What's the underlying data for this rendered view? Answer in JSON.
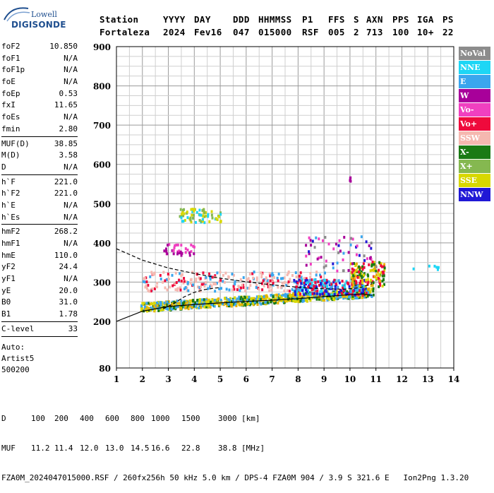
{
  "logo": {
    "line1": "Lowell",
    "line2": "DIGISONDE"
  },
  "header": {
    "row1": [
      "Station",
      "YYYY",
      "DAY",
      "DDD",
      "HHMMSS",
      "P1",
      "FFS",
      "S",
      "AXN",
      "PPS",
      "IGA",
      "PS"
    ],
    "row2": [
      "Fortaleza",
      "2024",
      "Fev16",
      "047",
      "015000",
      "RSF",
      "005",
      "2",
      "713",
      "100",
      "10+",
      "22"
    ]
  },
  "params": [
    {
      "k": "foF2",
      "v": "10.850"
    },
    {
      "k": "foF1",
      "v": "N/A"
    },
    {
      "k": "foF1p",
      "v": "N/A"
    },
    {
      "k": "foE",
      "v": "N/A"
    },
    {
      "k": "foEp",
      "v": "0.53"
    },
    {
      "k": "fxI",
      "v": "11.65"
    },
    {
      "k": "foEs",
      "v": "N/A"
    },
    {
      "k": "fmin",
      "v": "2.80"
    },
    {
      "sep": true
    },
    {
      "k": "MUF(D)",
      "v": "38.85"
    },
    {
      "k": "M(D)",
      "v": "3.58"
    },
    {
      "k": "D",
      "v": "N/A"
    },
    {
      "sep": true
    },
    {
      "k": "h`F",
      "v": "221.0"
    },
    {
      "k": "h`F2",
      "v": "221.0"
    },
    {
      "k": "h`E",
      "v": "N/A"
    },
    {
      "k": "h`Es",
      "v": "N/A"
    },
    {
      "sep": true
    },
    {
      "k": "hmF2",
      "v": "268.2"
    },
    {
      "k": "hmF1",
      "v": "N/A"
    },
    {
      "k": "hmE",
      "v": "110.0"
    },
    {
      "k": "yF2",
      "v": "24.4"
    },
    {
      "k": "yF1",
      "v": "N/A"
    },
    {
      "k": "yE",
      "v": "20.0"
    },
    {
      "k": "B0",
      "v": "31.0"
    },
    {
      "k": "B1",
      "v": "1.78"
    },
    {
      "sep": true
    },
    {
      "k": "C-level",
      "v": "33"
    },
    {
      "sep": true
    }
  ],
  "autoscaling": {
    "line1": "Auto:",
    "line2": "Artist5",
    "line3": "500200"
  },
  "legend": [
    {
      "label": "NoVal",
      "color": "#8c8c8c"
    },
    {
      "label": "NNE",
      "color": "#1ed6f5"
    },
    {
      "label": "E",
      "color": "#3aa6ee"
    },
    {
      "label": "W",
      "color": "#a8009a"
    },
    {
      "label": "Vo-",
      "color": "#f040c0"
    },
    {
      "label": "Vo+",
      "color": "#ef0a3c"
    },
    {
      "label": "SSW",
      "color": "#f5b8b0"
    },
    {
      "label": "X-",
      "color": "#1a7a14"
    },
    {
      "label": "X+",
      "color": "#85b850"
    },
    {
      "label": "SSE",
      "color": "#d8d800"
    },
    {
      "label": "NNW",
      "color": "#2018d6"
    }
  ],
  "footer": {
    "row_d": [
      "D",
      "100",
      "200",
      "400",
      "600",
      "800",
      "1000",
      "1500",
      "3000",
      "[km]"
    ],
    "row_muf": [
      "MUF",
      "11.2",
      "11.4",
      "12.0",
      "13.0",
      "14.5",
      "16.6",
      "22.8",
      "38.8",
      "[MHz]"
    ],
    "info": "FZA0M_2024047015000.RSF / 260fx256h 50 kHz 5.0 km / DPS-4 FZA0M 904 / 3.9 S 321.6 E   Ion2Png 1.3.20"
  },
  "chart_data": {
    "type": "scatter",
    "x_ticks": [
      "1",
      "2",
      "3",
      "4",
      "5",
      "6",
      "7",
      "8",
      "9",
      "10",
      "11",
      "12",
      "13",
      "14"
    ],
    "y_ticks": [
      "80",
      "200",
      "300",
      "400",
      "500",
      "600",
      "700",
      "800",
      "900"
    ],
    "xlim": [
      1,
      14
    ],
    "ylim": [
      80,
      900
    ],
    "grid": true,
    "traces": [
      {
        "name": "virtual-height-trace",
        "style": "solid",
        "x": [
          1.0,
          2.0,
          3.0,
          4.0,
          5.0,
          6.0,
          7.0,
          8.0,
          9.0,
          10.0,
          10.5,
          10.85
        ],
        "y": [
          200,
          226,
          238,
          243,
          247,
          251,
          254,
          258,
          263,
          268,
          270,
          266
        ]
      },
      {
        "name": "profile-upper",
        "style": "dashed",
        "x": [
          1.0,
          2.0,
          3.0,
          4.0,
          5.0,
          6.0,
          7.0,
          8.0,
          9.0,
          9.8,
          10.4,
          10.85
        ],
        "y": [
          385,
          356,
          336,
          322,
          310,
          301,
          293,
          287,
          283,
          282,
          286,
          296
        ]
      },
      {
        "name": "profile-lower",
        "style": "dashed",
        "x": [
          2.8,
          3.2,
          3.6,
          4.0,
          4.4,
          4.8,
          5.0
        ],
        "y": [
          232,
          245,
          262,
          274,
          281,
          285,
          286
        ]
      }
    ],
    "echo_clusters": [
      {
        "x": [
          1.9,
          10.9
        ],
        "y": [
          225,
          285
        ],
        "colors": [
          "#d8d800",
          "#e8b000",
          "#1a7a14",
          "#3aa6ee"
        ],
        "density": 900
      },
      {
        "x": [
          2.0,
          9.0
        ],
        "y": [
          280,
          330
        ],
        "colors": [
          "#f5b8b0",
          "#f5b8b0",
          "#ef0a3c",
          "#3aa6ee"
        ],
        "density": 260
      },
      {
        "x": [
          7.8,
          10.6
        ],
        "y": [
          270,
          310
        ],
        "colors": [
          "#3aa6ee",
          "#1ed6f5",
          "#2018d6",
          "#ef0a3c"
        ],
        "density": 220
      },
      {
        "x": [
          10.0,
          11.3
        ],
        "y": [
          290,
          355
        ],
        "colors": [
          "#ef0a3c",
          "#d8d800",
          "#e8b000",
          "#1a7a14"
        ],
        "density": 140
      },
      {
        "x": [
          3.4,
          5.0
        ],
        "y": [
          455,
          490
        ],
        "colors": [
          "#d8d800",
          "#85b850",
          "#1ed6f5"
        ],
        "density": 70
      },
      {
        "x": [
          2.8,
          4.0
        ],
        "y": [
          370,
          400
        ],
        "colors": [
          "#a8009a",
          "#f040c0"
        ],
        "density": 35
      },
      {
        "x": [
          8.2,
          11.0
        ],
        "y": [
          330,
          420
        ],
        "colors": [
          "#3aa6ee",
          "#f040c0",
          "#2018d6",
          "#a8009a",
          "#8c8c8c"
        ],
        "density": 60
      },
      {
        "x": [
          12.4,
          13.4
        ],
        "y": [
          335,
          345
        ],
        "colors": [
          "#1ed6f5"
        ],
        "density": 6
      },
      {
        "x": [
          9.95,
          10.1
        ],
        "y": [
          560,
          570
        ],
        "colors": [
          "#a8009a"
        ],
        "density": 4
      }
    ]
  }
}
